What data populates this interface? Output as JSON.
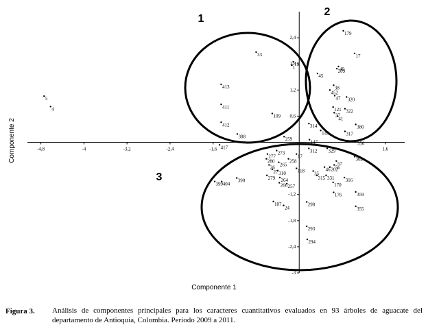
{
  "chart_data": {
    "type": "scatter",
    "xlabel": "Componente 1",
    "ylabel": "Componente 2",
    "annotations": [
      "1",
      "2",
      "3"
    ],
    "caption": {
      "label": "Figura 3.",
      "text": "Análisis de componentes principales para los caracteres cuantitativos evaluados en 93 árboles de aguacate del departamento de Antioquia, Colombia. Periodo 2009 a 2011."
    },
    "xlim": [
      -5.05,
      1.96
    ],
    "ylim": [
      -3,
      3
    ],
    "xticks": [
      {
        "value": -4.8,
        "label": "-4,8"
      },
      {
        "value": -4,
        "label": "-4"
      },
      {
        "value": -3.2,
        "label": "-3,2"
      },
      {
        "value": -2.4,
        "label": "-2,4"
      },
      {
        "value": -1.6,
        "label": "-1,6"
      },
      {
        "value": 1.6,
        "label": "1,6"
      }
    ],
    "yticks": [
      {
        "value": 2.4,
        "label": "2,4"
      },
      {
        "value": 1.8,
        "label": "1,8"
      },
      {
        "value": 1.2,
        "label": "1,2"
      },
      {
        "value": 0.6,
        "label": "0,6"
      },
      {
        "value": -1.2,
        "label": "-1,2"
      },
      {
        "value": -1.8,
        "label": "-1,8"
      },
      {
        "value": -2.4,
        "label": "-2,4"
      },
      {
        "value": -3,
        "label": "-3"
      }
    ],
    "series": [
      {
        "color": "#000000",
        "labels": [
          "179",
          "17",
          "33",
          "19",
          "1",
          "40",
          "209",
          "45",
          "413",
          "38",
          "452",
          "47",
          "320",
          "411",
          "121",
          "322",
          "37",
          "41",
          "109",
          "412",
          "314",
          "380",
          "388",
          "317",
          "143",
          "259",
          "5",
          "4",
          "417",
          "312",
          "356",
          "362",
          "147",
          "277",
          "273",
          "280",
          "258",
          "265",
          "26",
          "27",
          "310",
          "118",
          "279",
          "264",
          "266",
          "257",
          "390",
          "399",
          "404",
          "35",
          "46",
          "202",
          "315",
          "331",
          "316",
          "170",
          "359",
          "176",
          "355",
          "298",
          "107",
          "24",
          "293",
          "294",
          "17",
          "329",
          "57",
          "56"
        ],
        "x": [
          0.82,
          1.03,
          -0.8,
          -0.11,
          -0.14,
          0.73,
          0.7,
          0.34,
          -1.45,
          0.64,
          0.57,
          0.66,
          0.88,
          -1.45,
          0.63,
          0.85,
          0.65,
          0.71,
          -0.5,
          -1.45,
          0.18,
          1.05,
          -1.15,
          0.85,
          0.4,
          -0.28,
          -4.74,
          -4.62,
          -1.48,
          0.18,
          1.06,
          1.03,
          0.19,
          -0.59,
          -0.42,
          -0.61,
          -0.2,
          -0.38,
          -0.56,
          -0.5,
          -0.4,
          -0.05,
          -0.6,
          -0.36,
          -0.37,
          -0.23,
          -1.16,
          -1.57,
          -1.44,
          0.26,
          0.47,
          0.57,
          0.33,
          0.5,
          0.84,
          0.63,
          1.05,
          0.64,
          1.05,
          0.14,
          -0.48,
          -0.29,
          0.14,
          0.15,
          -0.05,
          0.52,
          0.69,
          0.65
        ],
        "values": [
          2.56,
          2.04,
          2.07,
          1.85,
          1.77,
          1.74,
          1.69,
          1.58,
          1.33,
          1.31,
          1.2,
          1.07,
          1.04,
          0.87,
          0.81,
          0.77,
          0.68,
          0.6,
          0.66,
          0.46,
          0.43,
          0.41,
          0.19,
          0.25,
          0.27,
          0.13,
          1.06,
          0.82,
          -0.06,
          -0.14,
          0.03,
          -0.33,
          0.06,
          -0.27,
          -0.19,
          -0.38,
          -0.38,
          -0.46,
          -0.52,
          -0.62,
          -0.65,
          -0.6,
          -0.76,
          -0.81,
          -0.93,
          -0.95,
          -0.82,
          -0.9,
          -0.9,
          -0.66,
          -0.57,
          -0.57,
          -0.76,
          -0.76,
          -0.81,
          -0.92,
          -1.14,
          -1.15,
          -1.47,
          -1.37,
          -1.36,
          -1.45,
          -1.93,
          -2.23,
          -0.27,
          -0.14,
          -0.43,
          -0.52
        ]
      }
    ]
  }
}
